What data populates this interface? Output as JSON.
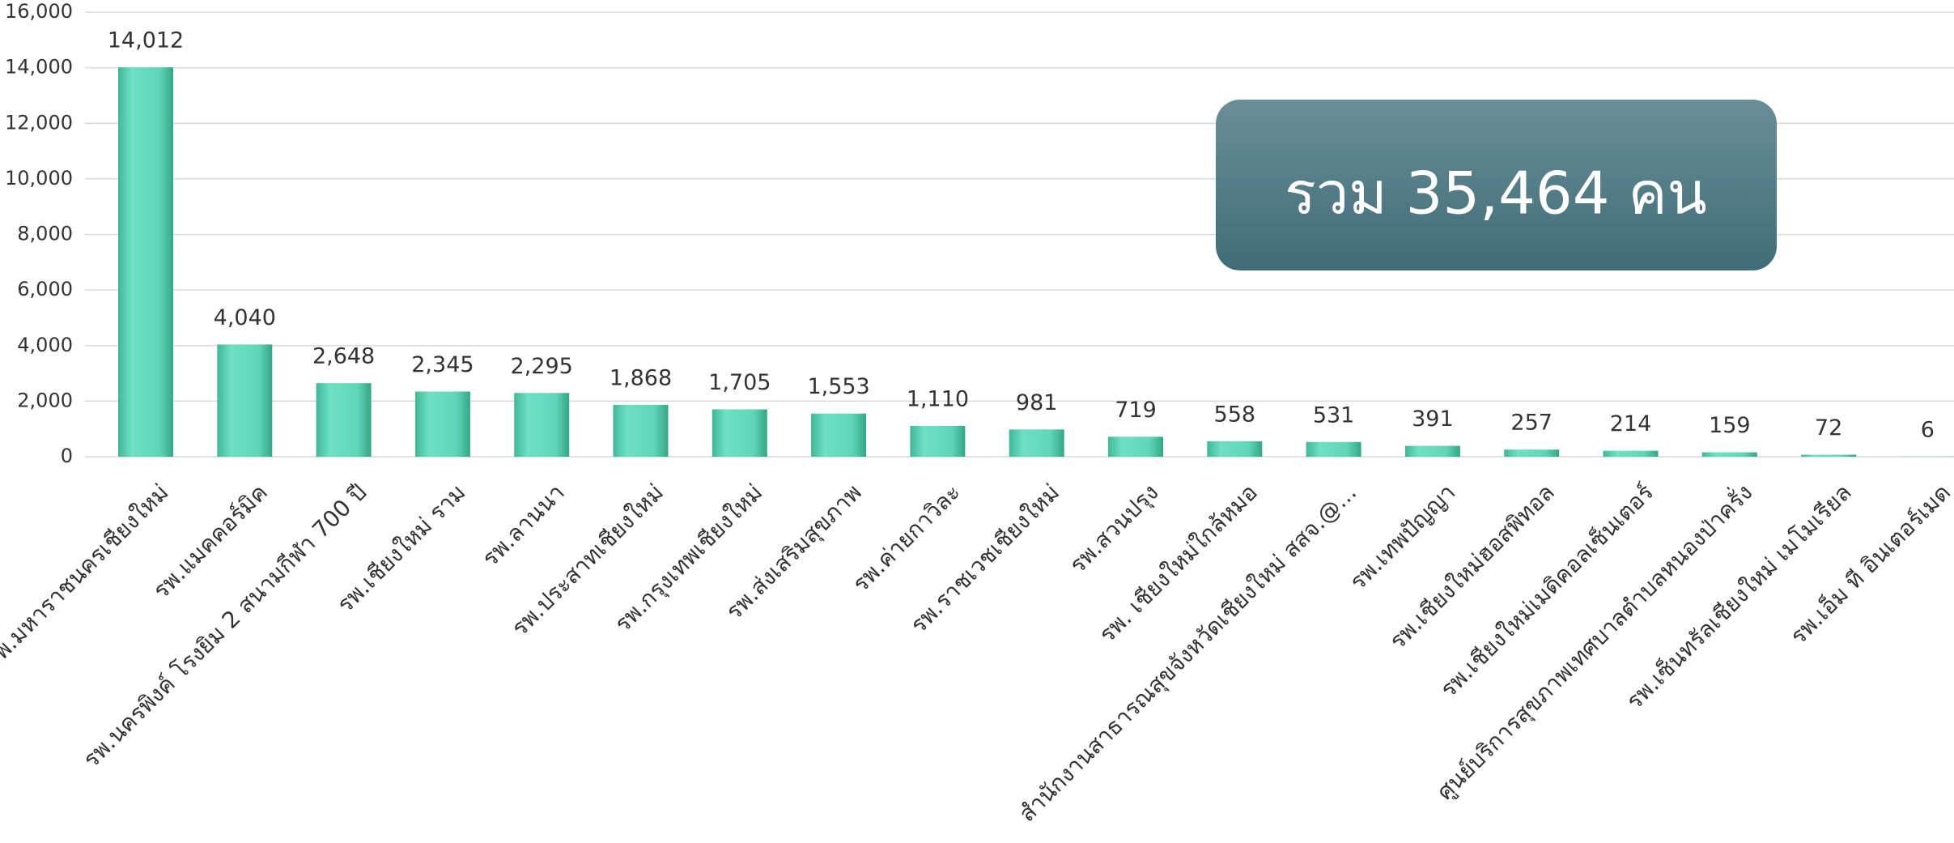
{
  "chart_data": {
    "type": "bar",
    "categories": [
      "รพ.มหาราชนครเชียงใหม่",
      "รพ.แมคคอร์มิค",
      "รพ.นครพิงค์ โรงยิม 2 สนามกีฬา 700 ปี",
      "รพ.เชียงใหม่ ราม",
      "รพ.ลานนา",
      "รพ.ประสาทเชียงใหม่",
      "รพ.กรุงเทพเชียงใหม่",
      "รพ.ส่งเสริมสุขภาพ",
      "รพ.ค่ายกาวิละ",
      "รพ.ราชเวชเชียงใหม่",
      "รพ.สวนปรุง",
      "รพ. เชียงใหม่ใกล้หมอ",
      "สำนักงานสาธารณสุขจังหวัดเชียงใหม่ สสจ.@...",
      "รพ.เทพปัญญา",
      "รพ.เชียงใหม่ฮอสพิทอล",
      "รพ.เชียงใหม่เมดิคอลเซ็นเตอร์",
      "ศูนย์บริการสุขภาพเทศบาลตำบลหนองป่าครั่ง",
      "รพ.เซ็นทรัลเชียงใหม่ เมโมเรียล",
      "รพ.เอ็ม ที อินเตอร์เมด"
    ],
    "values": [
      14012,
      4040,
      2648,
      2345,
      2295,
      1868,
      1705,
      1553,
      1110,
      981,
      719,
      558,
      531,
      391,
      257,
      214,
      159,
      72,
      6
    ],
    "value_labels": [
      "14,012",
      "4,040",
      "2,648",
      "2,345",
      "2,295",
      "1,868",
      "1,705",
      "1,553",
      "1,110",
      "981",
      "719",
      "558",
      "531",
      "391",
      "257",
      "214",
      "159",
      "72",
      "6"
    ],
    "color": "#5fd6b8",
    "ylim": [
      0,
      16000
    ],
    "yticks": [
      0,
      {
        "value": 2000,
        "label": "2,000"
      },
      {
        "value": 4000,
        "label": "4,000"
      },
      {
        "value": 6000,
        "label": "6,000"
      },
      {
        "value": 8000,
        "label": "8,000"
      },
      {
        "value": 10000,
        "label": "10,000"
      },
      {
        "value": 12000,
        "label": "12,000"
      },
      {
        "value": 14000,
        "label": "14,000"
      },
      {
        "value": 16000,
        "label": "16,000"
      }
    ],
    "grid": true,
    "annotation": "รวม 35,464 คน"
  }
}
